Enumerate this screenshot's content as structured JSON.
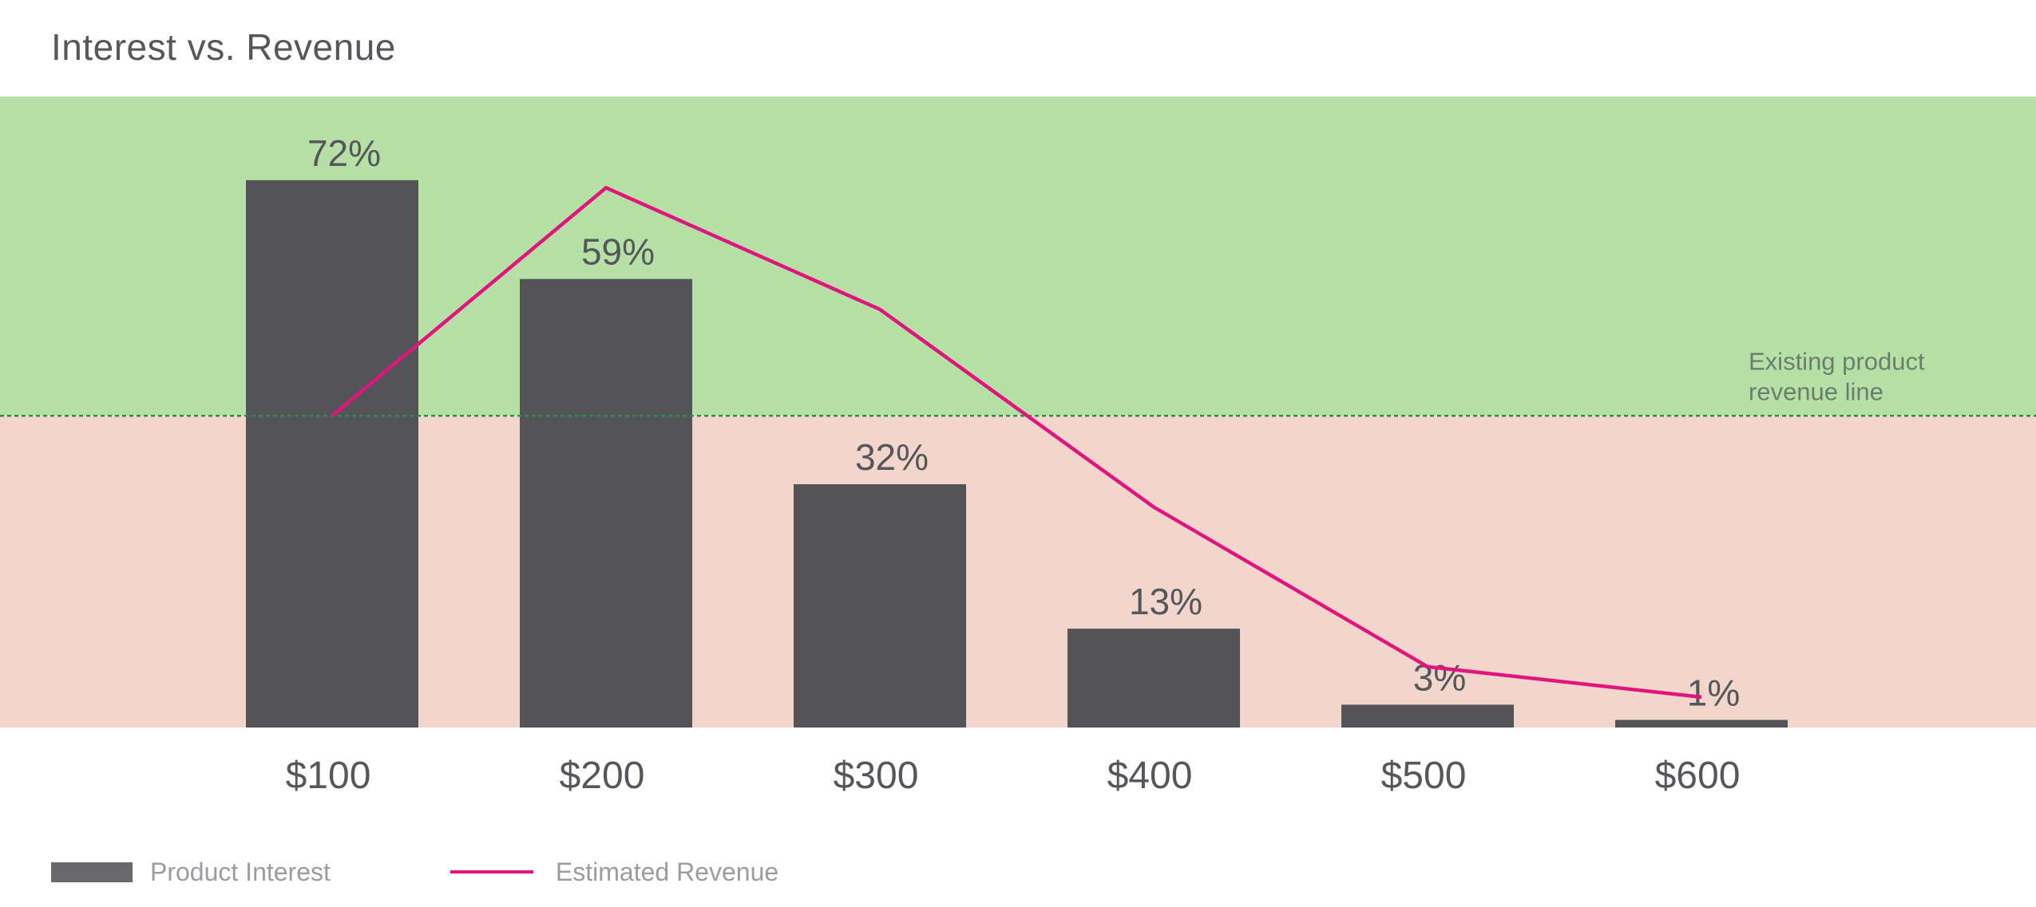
{
  "chart_data": {
    "type": "bar",
    "title": "Interest vs. Revenue",
    "categories": [
      "$100",
      "$200",
      "$300",
      "$400",
      "$500",
      "$600"
    ],
    "series": [
      {
        "name": "Product Interest",
        "type": "bar",
        "values": [
          72,
          59,
          32,
          13,
          3,
          1
        ],
        "labels": [
          "72%",
          "59%",
          "32%",
          "13%",
          "3%",
          "1%"
        ],
        "color": "#545458"
      },
      {
        "name": "Estimated Revenue",
        "type": "line",
        "values": [
          41,
          71,
          55,
          29,
          8,
          4
        ],
        "color": "#e0157e"
      }
    ],
    "ylim": [
      0,
      83
    ],
    "reference_line": {
      "value": 41,
      "label_lines": [
        "Existing product",
        "revenue line"
      ],
      "color": "#2e8b4a"
    },
    "bands": {
      "above_color": "#b6e0a6",
      "below_color": "#f2d6cc"
    },
    "grid": false,
    "legend_position": "bottom-left"
  }
}
